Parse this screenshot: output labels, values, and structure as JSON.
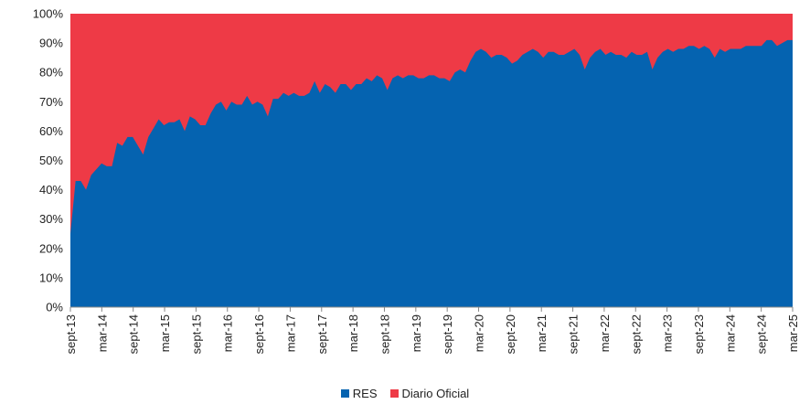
{
  "chart_data": {
    "type": "area",
    "stacked": true,
    "percent": true,
    "title": "",
    "xlabel": "",
    "ylabel": "",
    "ylim": [
      0,
      100
    ],
    "y_ticks": [
      "0%",
      "10%",
      "20%",
      "30%",
      "40%",
      "50%",
      "60%",
      "70%",
      "80%",
      "90%",
      "100%"
    ],
    "x_ticks": [
      "sept-13",
      "mar-14",
      "sept-14",
      "mar-15",
      "sept-15",
      "mar-16",
      "sept-16",
      "mar-17",
      "sept-17",
      "mar-18",
      "sept-18",
      "mar-19",
      "sept-19",
      "mar-20",
      "sept-20",
      "mar-21",
      "sept-21",
      "mar-22",
      "sept-22",
      "mar-23",
      "sept-23",
      "mar-24",
      "sept-24",
      "mar-25"
    ],
    "legend_position": "bottom",
    "grid": false,
    "colors": {
      "RES": "#0563b0",
      "Diario Oficial": "#ee3a46"
    },
    "series": [
      {
        "name": "RES",
        "values": [
          25,
          43,
          43,
          40,
          45,
          47,
          49,
          48,
          48,
          56,
          55,
          58,
          58,
          55,
          52,
          58,
          61,
          64,
          62,
          63,
          63,
          64,
          60,
          65,
          64,
          62,
          62,
          66,
          69,
          70,
          67,
          70,
          69,
          69,
          72,
          69,
          70,
          69,
          65,
          71,
          71,
          73,
          72,
          73,
          72,
          72,
          73,
          77,
          73,
          76,
          75,
          73,
          76,
          76,
          74,
          76,
          76,
          78,
          77,
          79,
          78,
          74,
          78,
          79,
          78,
          79,
          79,
          78,
          78,
          79,
          79,
          78,
          78,
          77,
          80,
          81,
          80,
          84,
          87,
          88,
          87,
          85,
          86,
          86,
          85,
          83,
          84,
          86,
          87,
          88,
          87,
          85,
          87,
          87,
          86,
          86,
          87,
          88,
          86,
          81,
          85,
          87,
          88,
          86,
          87,
          86,
          86,
          85,
          87,
          86,
          86,
          87,
          81,
          85,
          87,
          88,
          87,
          88,
          88,
          89,
          89,
          88,
          89,
          88,
          85,
          88,
          87,
          88,
          88,
          88,
          89,
          89,
          89,
          89,
          91,
          91,
          89,
          90,
          91,
          91
        ]
      },
      {
        "name": "Diario Oficial",
        "values": [
          75,
          57,
          57,
          60,
          55,
          53,
          51,
          52,
          52,
          44,
          45,
          42,
          42,
          45,
          48,
          42,
          39,
          36,
          38,
          37,
          37,
          36,
          40,
          35,
          36,
          38,
          38,
          34,
          31,
          30,
          33,
          30,
          31,
          31,
          28,
          31,
          30,
          31,
          35,
          29,
          29,
          27,
          28,
          27,
          28,
          28,
          27,
          23,
          27,
          24,
          25,
          27,
          24,
          24,
          26,
          24,
          24,
          22,
          23,
          21,
          22,
          26,
          22,
          21,
          22,
          21,
          21,
          22,
          22,
          21,
          21,
          22,
          22,
          23,
          20,
          19,
          20,
          16,
          13,
          12,
          13,
          15,
          14,
          14,
          15,
          17,
          16,
          14,
          13,
          12,
          13,
          15,
          13,
          13,
          14,
          14,
          13,
          12,
          14,
          19,
          15,
          13,
          12,
          14,
          13,
          14,
          14,
          15,
          13,
          14,
          14,
          13,
          19,
          15,
          13,
          12,
          13,
          12,
          12,
          11,
          11,
          12,
          11,
          12,
          15,
          12,
          13,
          12,
          12,
          12,
          11,
          11,
          11,
          11,
          9,
          9,
          11,
          10,
          9,
          9
        ]
      }
    ]
  }
}
